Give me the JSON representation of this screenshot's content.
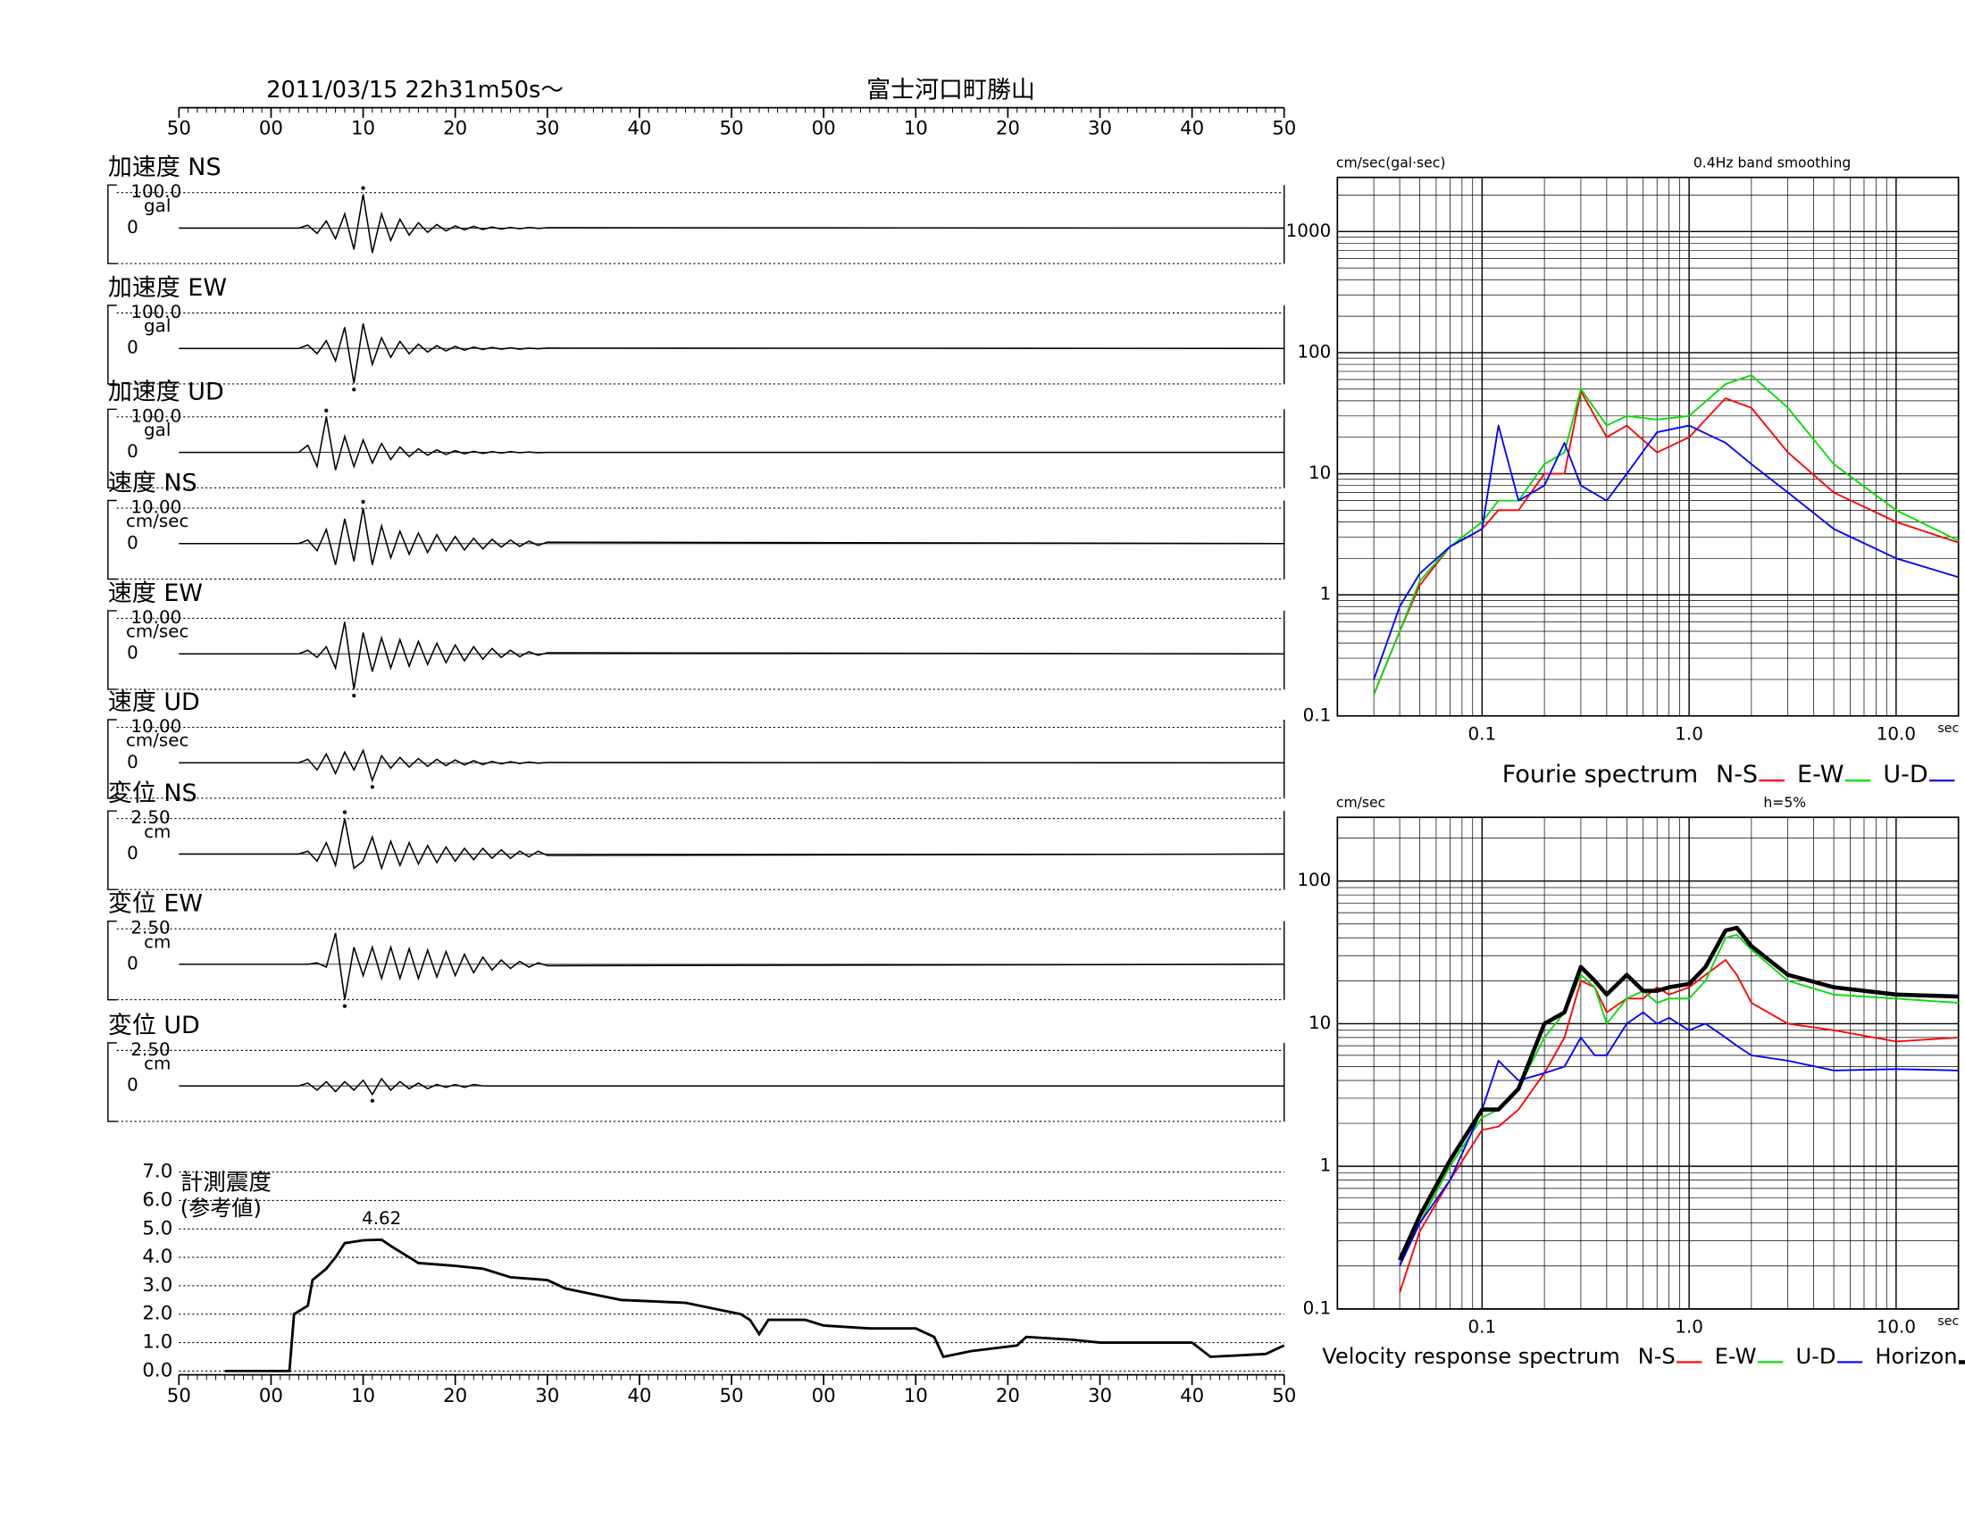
{
  "chart_data": [
    {
      "type": "waveform",
      "title": "2011/03/15  22h31m50s～",
      "subtitle": "富士河口町勝山",
      "xlim": [
        0,
        120
      ],
      "xticks": [
        {
          "value": 0,
          "label": "50"
        },
        {
          "value": 10,
          "label": "00"
        },
        {
          "value": 20,
          "label": "10"
        },
        {
          "value": 30,
          "label": "20"
        },
        {
          "value": 40,
          "label": "30"
        },
        {
          "value": 50,
          "label": "40"
        },
        {
          "value": 60,
          "label": "50"
        },
        {
          "value": 70,
          "label": "00"
        },
        {
          "value": 80,
          "label": "10"
        },
        {
          "value": 90,
          "label": "20"
        },
        {
          "value": 100,
          "label": "30"
        },
        {
          "value": 110,
          "label": "40"
        },
        {
          "value": 120,
          "label": "50"
        }
      ],
      "x": [
        0,
        13,
        14,
        15,
        16,
        17,
        18,
        19,
        20,
        21,
        22,
        23,
        24,
        25,
        26,
        27,
        28,
        29,
        30,
        31,
        32,
        33,
        34,
        35,
        36,
        37,
        38,
        39,
        40,
        120
      ],
      "panels": [
        {
          "title": "加速度 NS",
          "unit": "gal",
          "ylim": [
            -100,
            100
          ],
          "yticks": [
            {
              "value": 100,
              "label": "100.0"
            },
            0
          ],
          "values": [
            0,
            0,
            8,
            -15,
            20,
            -30,
            40,
            -60,
            95,
            -70,
            40,
            -35,
            25,
            -20,
            15,
            -12,
            10,
            -8,
            6,
            -5,
            5,
            -4,
            3,
            -3,
            2,
            -2,
            2,
            -1,
            1,
            0
          ]
        },
        {
          "title": "加速度 EW",
          "unit": "gal",
          "ylim": [
            -100,
            100
          ],
          "yticks": [
            {
              "value": 100,
              "label": "100.0"
            },
            0
          ],
          "values": [
            0,
            0,
            10,
            -15,
            22,
            -35,
            60,
            -98,
            70,
            -45,
            30,
            -25,
            20,
            -15,
            12,
            -10,
            8,
            -7,
            6,
            -5,
            4,
            -3,
            3,
            -2,
            2,
            -2,
            1,
            -1,
            1,
            0
          ]
        },
        {
          "title": "加速度 UD",
          "unit": "gal",
          "ylim": [
            -100,
            100
          ],
          "yticks": [
            {
              "value": 100,
              "label": "100.0"
            },
            0
          ],
          "values": [
            0,
            0,
            20,
            -40,
            100,
            -50,
            45,
            -40,
            35,
            -30,
            25,
            -20,
            15,
            -12,
            10,
            -8,
            7,
            -6,
            5,
            -4,
            3,
            -3,
            2,
            -2,
            2,
            -1,
            1,
            -1,
            0,
            0
          ]
        },
        {
          "title": "速度 NS",
          "unit": "cm/sec",
          "ylim": [
            -10,
            10
          ],
          "yticks": [
            {
              "value": 10,
              "label": "10.00"
            },
            0
          ],
          "values": [
            0,
            0,
            1,
            -2,
            4,
            -6,
            7,
            -5,
            10,
            -6,
            5,
            -4,
            3.5,
            -3,
            3,
            -2.5,
            2.5,
            -2,
            2,
            -1.8,
            1.5,
            -1.5,
            1.2,
            -1,
            1,
            -0.8,
            0.7,
            -0.5,
            0.4,
            0
          ]
        },
        {
          "title": "速度 EW",
          "unit": "cm/sec",
          "ylim": [
            -10,
            10
          ],
          "yticks": [
            {
              "value": 10,
              "label": "10.00"
            },
            0
          ],
          "values": [
            0,
            0,
            1,
            -1,
            2,
            -4,
            9,
            -10,
            6,
            -5,
            4.5,
            -4,
            4,
            -3.5,
            3.5,
            -3,
            3,
            -2.5,
            2.5,
            -2,
            2,
            -1.5,
            1.5,
            -1,
            1,
            -0.8,
            0.6,
            -0.4,
            0.3,
            0
          ]
        },
        {
          "title": "速度 UD",
          "unit": "cm/sec",
          "ylim": [
            -10,
            10
          ],
          "yticks": [
            {
              "value": 10,
              "label": "10.00"
            },
            0
          ],
          "values": [
            0,
            0,
            1,
            -2,
            2.5,
            -3,
            3,
            -2,
            3.5,
            -5,
            2,
            -1.5,
            1.5,
            -1.2,
            1.2,
            -1,
            1,
            -0.8,
            0.8,
            -0.6,
            0.6,
            -0.5,
            0.4,
            -0.3,
            0.3,
            -0.2,
            0.2,
            -0.1,
            0.1,
            0
          ]
        },
        {
          "title": "変位 NS",
          "unit": "cm",
          "ylim": [
            -2.5,
            2.5
          ],
          "yticks": [
            {
              "value": 2.5,
              "label": "2.50"
            },
            0
          ],
          "values": [
            0,
            0,
            0.2,
            -0.5,
            0.8,
            -0.8,
            2.5,
            -1,
            -0.5,
            1.2,
            -1,
            0.9,
            -0.8,
            0.8,
            -0.7,
            0.6,
            -0.6,
            0.5,
            -0.5,
            0.4,
            -0.4,
            0.4,
            -0.3,
            0.3,
            -0.3,
            0.2,
            -0.2,
            0.2,
            -0.1,
            0
          ]
        },
        {
          "title": "変位 EW",
          "unit": "cm",
          "ylim": [
            -2.5,
            2.5
          ],
          "yticks": [
            {
              "value": 2.5,
              "label": "2.50"
            },
            0
          ],
          "values": [
            0,
            0,
            0,
            0.1,
            -0.2,
            2.2,
            -2.5,
            1.2,
            -0.8,
            1.2,
            -1,
            1.2,
            -1,
            1.1,
            -1,
            1,
            -0.9,
            0.9,
            -0.8,
            0.7,
            -0.6,
            0.5,
            -0.4,
            0.3,
            -0.3,
            0.2,
            -0.2,
            0.1,
            -0.1,
            0
          ]
        },
        {
          "title": "変位 UD",
          "unit": "cm",
          "ylim": [
            -2.5,
            2.5
          ],
          "yticks": [
            {
              "value": 2.5,
              "label": "2.50"
            },
            0
          ],
          "values": [
            0,
            0,
            0.2,
            -0.3,
            0.3,
            -0.4,
            0.3,
            -0.3,
            0.4,
            -0.6,
            0.5,
            -0.3,
            0.3,
            -0.2,
            0.2,
            -0.2,
            0.1,
            -0.1,
            0.1,
            -0.1,
            0.1,
            0,
            0,
            0,
            0,
            0,
            0,
            0,
            0,
            0
          ]
        }
      ]
    },
    {
      "type": "line",
      "title": "計測震度",
      "subtitle": "(参考値)",
      "xlim": [
        0,
        120
      ],
      "xticks": [
        {
          "value": 0,
          "label": "50"
        },
        {
          "value": 10,
          "label": "00"
        },
        {
          "value": 20,
          "label": "10"
        },
        {
          "value": 30,
          "label": "20"
        },
        {
          "value": 40,
          "label": "30"
        },
        {
          "value": 50,
          "label": "40"
        },
        {
          "value": 60,
          "label": "50"
        },
        {
          "value": 70,
          "label": "00"
        },
        {
          "value": 80,
          "label": "10"
        },
        {
          "value": 90,
          "label": "20"
        },
        {
          "value": 100,
          "label": "30"
        },
        {
          "value": 110,
          "label": "40"
        },
        {
          "value": 120,
          "label": "50"
        }
      ],
      "ylim": [
        0,
        7
      ],
      "yticks": [
        {
          "value": 0,
          "label": "0.0"
        },
        {
          "value": 1,
          "label": "1.0"
        },
        {
          "value": 2,
          "label": "2.0"
        },
        {
          "value": 3,
          "label": "3.0"
        },
        {
          "value": 4,
          "label": "4.0"
        },
        {
          "value": 5,
          "label": "5.0"
        },
        {
          "value": 6,
          "label": "6.0"
        },
        {
          "value": 7,
          "label": "7.0"
        }
      ],
      "x": [
        5,
        12,
        12.5,
        14,
        14.5,
        16,
        17,
        18,
        20,
        22,
        23,
        25,
        26,
        30,
        33,
        36,
        40,
        42,
        45,
        48,
        55,
        58,
        61,
        62,
        63,
        64,
        68,
        70,
        75,
        80,
        82,
        83,
        86,
        91,
        92,
        97,
        100,
        110,
        112,
        118,
        120
      ],
      "values": [
        0,
        0,
        2.0,
        2.3,
        3.2,
        3.6,
        4.0,
        4.5,
        4.6,
        4.62,
        4.4,
        4.0,
        3.8,
        3.7,
        3.6,
        3.3,
        3.2,
        2.9,
        2.7,
        2.5,
        2.4,
        2.2,
        2.0,
        1.8,
        1.3,
        1.8,
        1.8,
        1.6,
        1.5,
        1.5,
        1.2,
        0.5,
        0.7,
        0.9,
        1.2,
        1.1,
        1.0,
        1.0,
        0.5,
        0.6,
        0.9
      ]
    },
    {
      "type": "loglog",
      "title": "Fourie spectrum",
      "ylabel": "cm/sec(gal·sec)",
      "note": "0.4Hz band smoothing",
      "xlabel": "sec",
      "xlim": [
        0.02,
        20
      ],
      "ylim": [
        0.1,
        2800
      ],
      "grid": true,
      "xticks": [
        0.1,
        {
          "value": 1,
          "label": "1.0"
        },
        {
          "value": 10,
          "label": "10.0"
        }
      ],
      "yticks": [
        0.1,
        1,
        10,
        100,
        1000
      ],
      "x": [
        0.03,
        0.04,
        0.05,
        0.07,
        0.1,
        0.12,
        0.15,
        0.2,
        0.25,
        0.3,
        0.4,
        0.5,
        0.7,
        1.0,
        1.5,
        2,
        3,
        5,
        10,
        20
      ],
      "series": [
        {
          "name": "N-S",
          "color": "#ff0000",
          "values": [
            0.15,
            0.5,
            1.2,
            2.5,
            3.5,
            5,
            5,
            10,
            10,
            48,
            20,
            25,
            15,
            20,
            42,
            35,
            15,
            7,
            4,
            2.7
          ]
        },
        {
          "name": "E-W",
          "color": "#00dd00",
          "values": [
            0.15,
            0.5,
            1.3,
            2.5,
            4,
            6,
            6,
            12,
            15,
            50,
            25,
            30,
            28,
            30,
            55,
            65,
            35,
            12,
            5,
            2.8
          ]
        },
        {
          "name": "U-D",
          "color": "#0000ff",
          "values": [
            0.2,
            0.8,
            1.5,
            2.5,
            3.5,
            25,
            6,
            8,
            18,
            8,
            6,
            10,
            22,
            25,
            18,
            12,
            7,
            3.5,
            2,
            1.4
          ]
        }
      ]
    },
    {
      "type": "loglog",
      "title": "Velocity response spectrum",
      "ylabel": "cm/sec",
      "note": "h=5%",
      "xlabel": "sec",
      "xlim": [
        0.02,
        20
      ],
      "ylim": [
        0.1,
        280
      ],
      "grid": true,
      "xticks": [
        0.1,
        {
          "value": 1,
          "label": "1.0"
        },
        {
          "value": 10,
          "label": "10.0"
        }
      ],
      "yticks": [
        0.1,
        1,
        10,
        100
      ],
      "x": [
        0.04,
        0.05,
        0.07,
        0.1,
        0.12,
        0.15,
        0.2,
        0.25,
        0.3,
        0.35,
        0.4,
        0.5,
        0.6,
        0.7,
        0.8,
        1.0,
        1.2,
        1.5,
        1.7,
        2,
        3,
        5,
        10,
        20
      ],
      "series": [
        {
          "name": "N-S",
          "color": "#ff0000",
          "values": [
            0.13,
            0.35,
            0.8,
            1.8,
            1.9,
            2.5,
            4.5,
            8,
            20,
            18,
            12,
            15,
            15,
            18,
            16,
            18,
            22,
            28,
            22,
            14,
            10,
            9,
            7.5,
            8
          ]
        },
        {
          "name": "E-W",
          "color": "#00dd00",
          "values": [
            0.2,
            0.4,
            1,
            2.2,
            2.5,
            3.5,
            8,
            12,
            22,
            18,
            10,
            15,
            17,
            14,
            15,
            15,
            20,
            40,
            42,
            33,
            20,
            16,
            15,
            14
          ]
        },
        {
          "name": "U-D",
          "color": "#0000ff",
          "values": [
            0.2,
            0.4,
            0.8,
            2.5,
            5.5,
            4,
            4.5,
            5,
            8,
            6,
            6,
            10,
            12,
            10,
            11,
            9,
            10,
            8,
            7,
            6,
            5.5,
            4.7,
            4.8,
            4.7
          ]
        },
        {
          "name": "Horizon",
          "color": "#000000",
          "values": [
            0.22,
            0.45,
            1.1,
            2.5,
            2.5,
            3.5,
            10,
            12,
            25,
            20,
            16,
            22,
            17,
            17,
            18,
            19,
            25,
            45,
            47,
            35,
            22,
            18,
            16,
            15.5
          ]
        }
      ]
    }
  ]
}
